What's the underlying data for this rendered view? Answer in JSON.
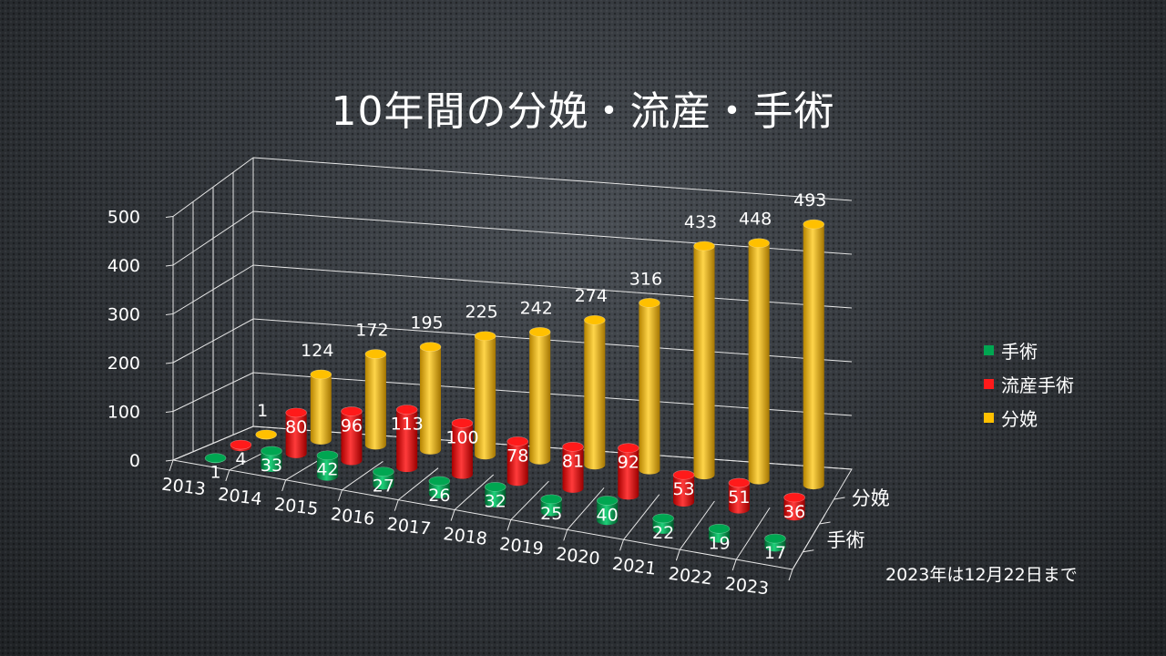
{
  "slide": {
    "title": "10年間の分娩・流産・手術",
    "note": "2023年は12月22日まで"
  },
  "legend": [
    {
      "name": "手術",
      "color": "#00a651"
    },
    {
      "name": "流産手術",
      "color": "#ff1a1a"
    },
    {
      "name": "分娩",
      "color": "#ffc000"
    }
  ],
  "chart_data": {
    "type": "bar",
    "style": "3d-cylinder",
    "categories": [
      "2013",
      "2014",
      "2015",
      "2016",
      "2017",
      "2018",
      "2019",
      "2020",
      "2021",
      "2022",
      "2023"
    ],
    "series": [
      {
        "name": "手術",
        "color": "#00a651",
        "values": [
          1,
          33,
          42,
          27,
          26,
          32,
          25,
          40,
          22,
          19,
          17
        ]
      },
      {
        "name": "流産手術",
        "color": "#ff1a1a",
        "values": [
          4,
          80,
          96,
          113,
          100,
          78,
          81,
          92,
          53,
          51,
          36
        ]
      },
      {
        "name": "分娩",
        "color": "#ffc000",
        "values": [
          1,
          124,
          172,
          195,
          225,
          242,
          274,
          316,
          433,
          448,
          493
        ]
      }
    ],
    "depth_labels": [
      "分娩",
      "手術"
    ],
    "yticks": [
      0,
      100,
      200,
      300,
      400,
      500
    ],
    "ylim": [
      0,
      500
    ],
    "grid": true,
    "legend_position": "right"
  }
}
